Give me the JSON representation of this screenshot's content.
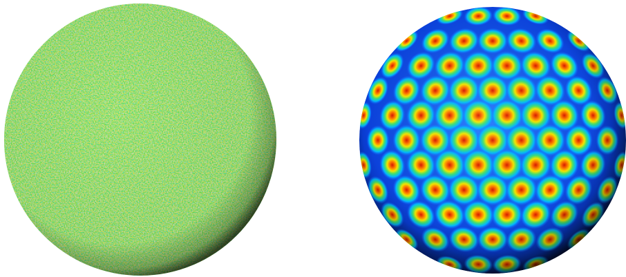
{
  "scene": {
    "background": "#ffffff",
    "panels": [
      {
        "name": "random-noise-sphere",
        "pattern": "random-noise",
        "colormap": "jet",
        "dominant_color": "#3fbf4a"
      },
      {
        "name": "hexagonal-spot-sphere",
        "pattern": "hexagonal-spots",
        "colormap": "jet",
        "dominant_color": "#1a5cff"
      }
    ]
  }
}
